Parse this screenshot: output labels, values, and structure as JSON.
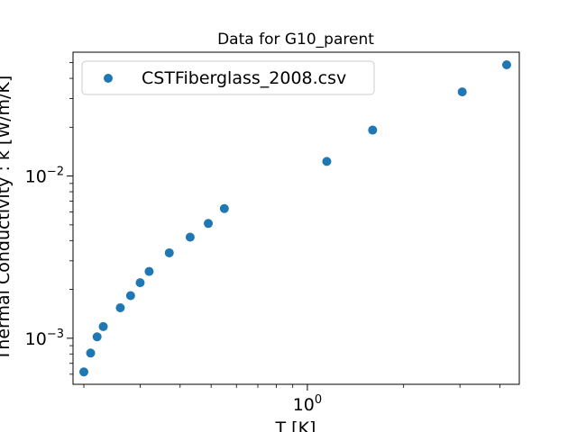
{
  "chart_data": {
    "type": "scatter",
    "title": "Data for G10_parent",
    "xlabel": "T [K]",
    "ylabel": "Thermal Conductivity : k [W/m/K]",
    "xscale": "log",
    "yscale": "log",
    "xlim": [
      0.185,
      4.6
    ],
    "ylim": [
      0.00052,
      0.058
    ],
    "grid": false,
    "legend_position": "top-left",
    "x_ticks": [
      {
        "value": 1,
        "base": "10",
        "exp": "0"
      }
    ],
    "y_ticks": [
      {
        "value": 0.001,
        "base": "10",
        "exp": "−3"
      },
      {
        "value": 0.01,
        "base": "10",
        "exp": "−2"
      }
    ],
    "series": [
      {
        "name": "CSTFiberglass_2008.csv",
        "color": "#1f77b4",
        "x": [
          0.2,
          0.21,
          0.22,
          0.23,
          0.26,
          0.28,
          0.3,
          0.32,
          0.37,
          0.43,
          0.49,
          0.55,
          1.15,
          1.6,
          3.05,
          4.2
        ],
        "y": [
          0.00062,
          0.00081,
          0.00102,
          0.00118,
          0.00154,
          0.00183,
          0.0022,
          0.00258,
          0.00336,
          0.0042,
          0.0051,
          0.0063,
          0.0123,
          0.0192,
          0.033,
          0.0485
        ]
      }
    ]
  }
}
